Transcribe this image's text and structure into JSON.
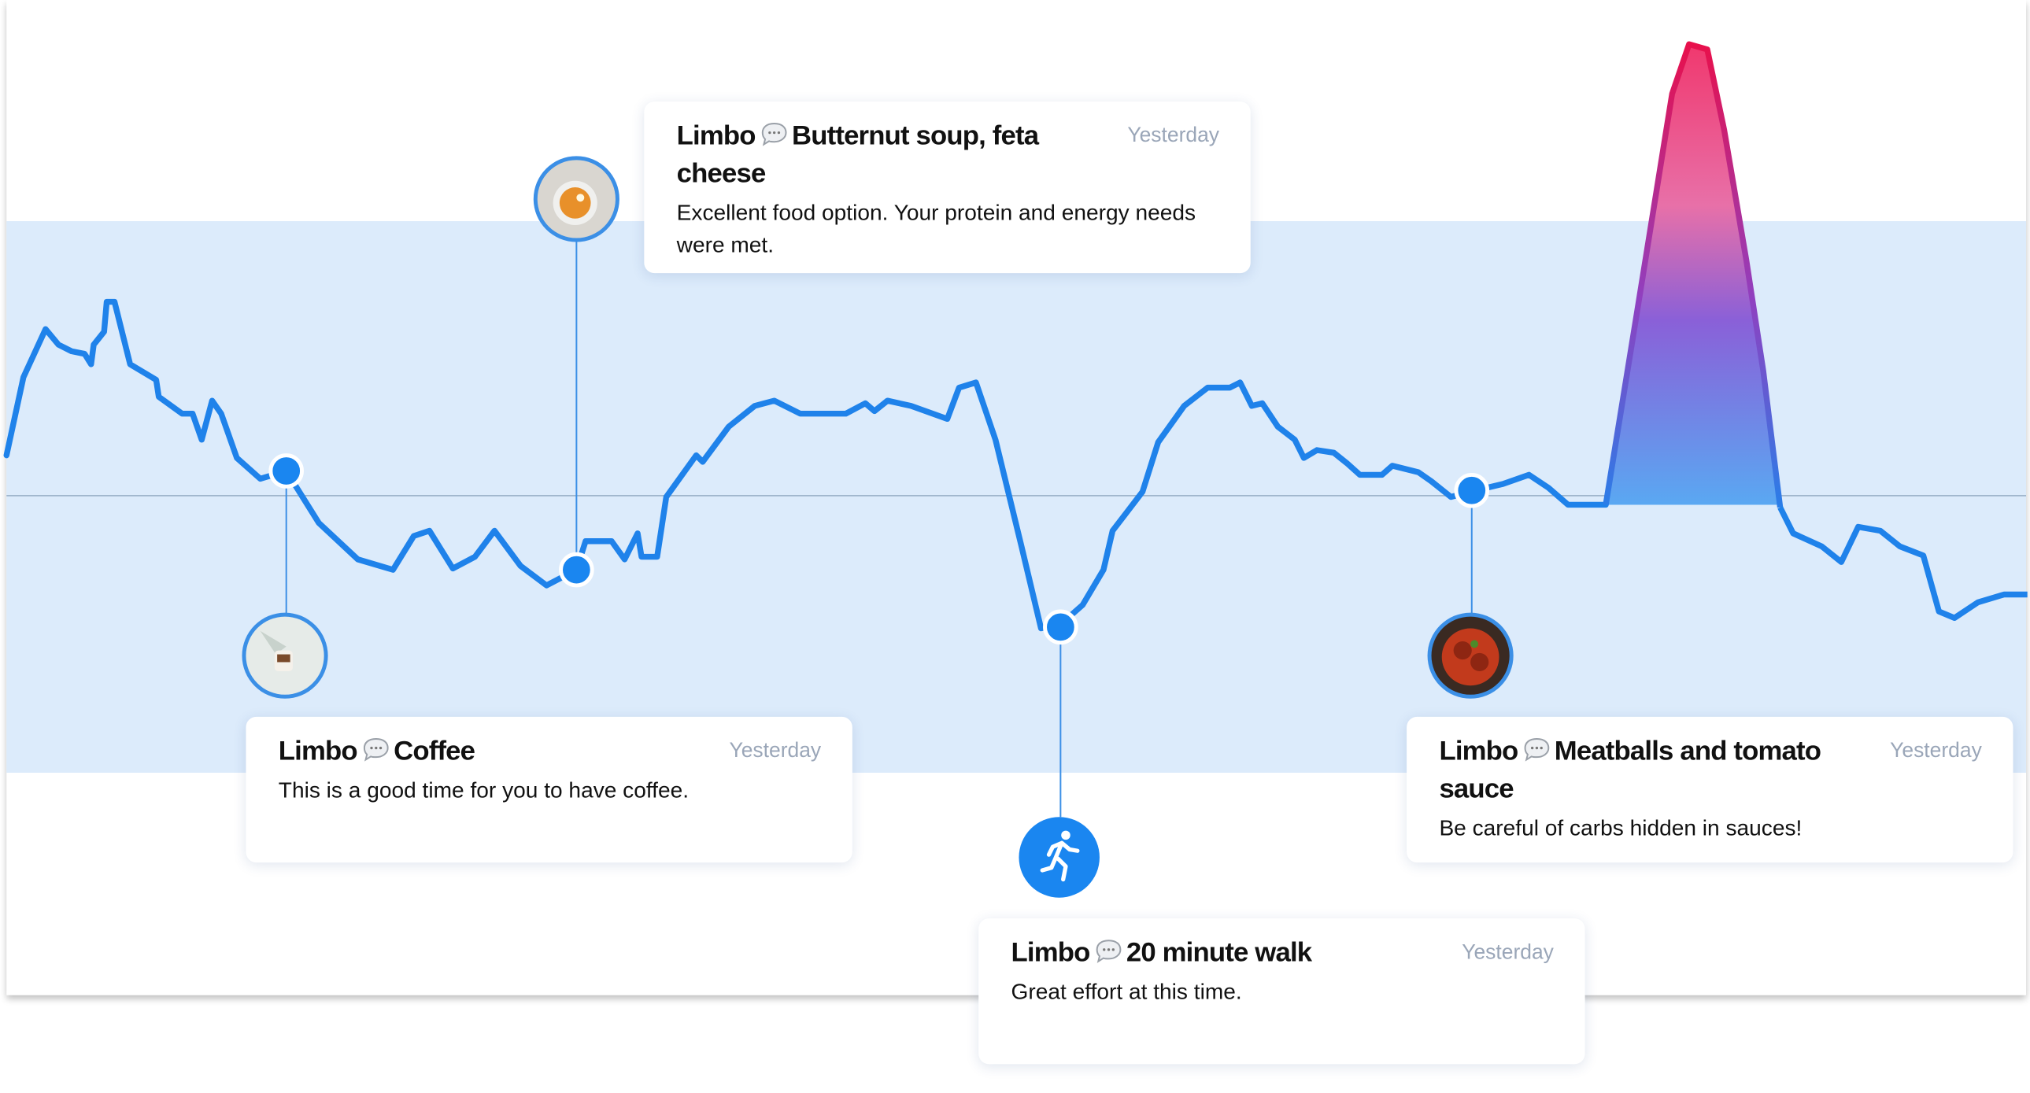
{
  "cards": [
    {
      "author": "Limbo",
      "title": "Butternut soup, feta cheese",
      "time": "Yesterday",
      "body": "Excellent food option. Your protein and energy needs were met."
    },
    {
      "author": "Limbo",
      "title": "Coffee",
      "time": "Yesterday",
      "body": "This is a good time for you to have coffee."
    },
    {
      "author": "Limbo",
      "title": "20 minute walk",
      "time": "Yesterday",
      "body": "Great effort at this time."
    },
    {
      "author": "Limbo",
      "title": "Meatballs and tomato sauce",
      "time": "Yesterday",
      "body": "Be careful of carbs hidden in sauces!"
    }
  ]
}
